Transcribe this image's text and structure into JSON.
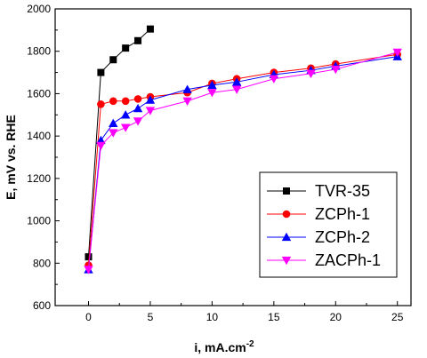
{
  "chart_data": {
    "type": "line",
    "xlabel": "i, mA.cm",
    "xlabel_sup": "-2",
    "ylabel": "E, mV vs. RHE",
    "xlim": [
      -2.7,
      26.1
    ],
    "ylim": [
      600,
      2000
    ],
    "xticks": [
      0,
      5,
      10,
      15,
      20,
      25
    ],
    "yticks": [
      600,
      800,
      1000,
      1200,
      1400,
      1600,
      1800,
      2000
    ],
    "grid": false,
    "legend_position": "lower-right",
    "series": [
      {
        "name": "TVR-35",
        "color": "#000000",
        "marker": "square",
        "x": [
          0,
          1,
          2,
          3,
          4,
          5
        ],
        "y": [
          830,
          1700,
          1760,
          1815,
          1850,
          1905
        ]
      },
      {
        "name": "ZCPh-1",
        "color": "#ff0000",
        "marker": "circle",
        "x": [
          0,
          1,
          2,
          3,
          4,
          5,
          8,
          10,
          12,
          15,
          18,
          20,
          25
        ],
        "y": [
          790,
          1550,
          1565,
          1565,
          1575,
          1585,
          1605,
          1648,
          1670,
          1700,
          1720,
          1740,
          1785
        ]
      },
      {
        "name": "ZCPh-2",
        "color": "#0000ff",
        "marker": "triangle-up",
        "x": [
          0,
          1,
          2,
          3,
          4,
          5,
          8,
          10,
          12,
          15,
          18,
          20,
          25
        ],
        "y": [
          770,
          1380,
          1460,
          1500,
          1530,
          1570,
          1620,
          1640,
          1655,
          1690,
          1710,
          1730,
          1775
        ]
      },
      {
        "name": "ZACPh-1",
        "color": "#ff00ff",
        "marker": "triangle-down",
        "x": [
          0,
          1,
          2,
          3,
          4,
          5,
          8,
          10,
          12,
          15,
          18,
          20,
          25
        ],
        "y": [
          770,
          1355,
          1415,
          1440,
          1470,
          1520,
          1565,
          1605,
          1620,
          1670,
          1695,
          1715,
          1795
        ]
      }
    ]
  }
}
